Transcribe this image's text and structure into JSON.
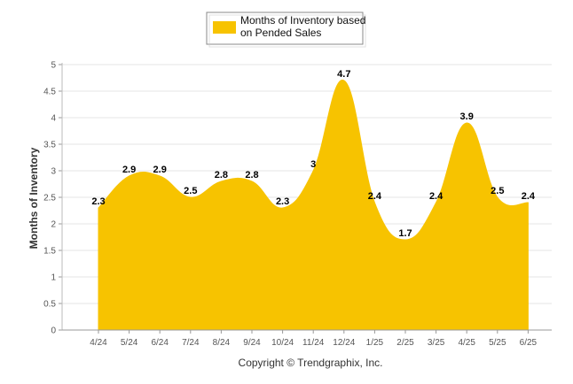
{
  "chart_data": {
    "type": "area",
    "title": "",
    "xlabel": "",
    "ylabel": "Months of Inventory",
    "ylim": [
      0,
      5
    ],
    "yticks": [
      "0",
      "0.5",
      "1",
      "1.5",
      "2",
      "2.5",
      "3",
      "3.5",
      "4",
      "4.5",
      "5"
    ],
    "grid": true,
    "legend_position": "top-center",
    "categories": [
      "4/24",
      "5/24",
      "6/24",
      "7/24",
      "8/24",
      "9/24",
      "10/24",
      "11/24",
      "12/24",
      "1/25",
      "2/25",
      "3/25",
      "4/25",
      "5/25",
      "6/25"
    ],
    "series": [
      {
        "name": "Months of Inventory based on Pended Sales",
        "legend_lines": [
          "Months of Inventory based",
          "on Pended Sales"
        ],
        "color": "#F7C300",
        "values": [
          2.3,
          2.9,
          2.9,
          2.5,
          2.8,
          2.8,
          2.3,
          3,
          4.7,
          2.4,
          1.7,
          2.4,
          3.9,
          2.5,
          2.4
        ],
        "labels": [
          "2.3",
          "2.9",
          "2.9",
          "2.5",
          "2.8",
          "2.8",
          "2.3",
          "3",
          "4.7",
          "2.4",
          "1.7",
          "2.4",
          "3.9",
          "2.5",
          "2.4"
        ]
      }
    ]
  },
  "footer": "Copyright © Trendgraphix, Inc."
}
